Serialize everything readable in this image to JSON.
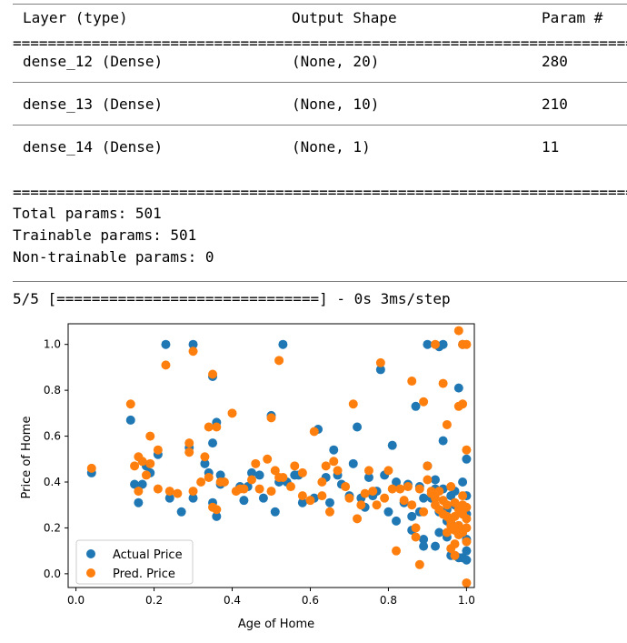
{
  "summary": {
    "headers": {
      "layer": "Layer (type)",
      "shape": "Output Shape",
      "params": "Param #"
    },
    "rows": [
      {
        "layer": "dense_12 (Dense)",
        "shape": "(None, 20)",
        "params": "280"
      },
      {
        "layer": "dense_13 (Dense)",
        "shape": "(None, 10)",
        "params": "210"
      },
      {
        "layer": "dense_14 (Dense)",
        "shape": "(None, 1)",
        "params": "11"
      }
    ],
    "total": "Total params: 501",
    "trainable": "Trainable params: 501",
    "non_trainable": "Non-trainable params: 0",
    "progress": "5/5 [==============================] - 0s 3ms/step"
  },
  "chart_data": {
    "type": "scatter",
    "xlabel": "Age of Home",
    "ylabel": "Price of Home",
    "xlim": [
      -0.02,
      1.02
    ],
    "ylim": [
      -0.06,
      1.09
    ],
    "xticks": [
      "0.0",
      "0.2",
      "0.4",
      "0.6",
      "0.8",
      "1.0"
    ],
    "yticks": [
      "0.0",
      "0.2",
      "0.4",
      "0.6",
      "0.8",
      "1.0"
    ],
    "legend_loc": "lower-left",
    "colors": {
      "actual": "#1f77b4",
      "pred": "#ff7f0e"
    },
    "series": [
      {
        "name": "Actual Price",
        "points": [
          [
            0.04,
            0.44
          ],
          [
            0.14,
            0.67
          ],
          [
            0.15,
            0.39
          ],
          [
            0.16,
            0.31
          ],
          [
            0.17,
            0.39
          ],
          [
            0.18,
            0.47
          ],
          [
            0.19,
            0.44
          ],
          [
            0.21,
            0.52
          ],
          [
            0.23,
            1.0
          ],
          [
            0.24,
            0.33
          ],
          [
            0.27,
            0.27
          ],
          [
            0.29,
            0.55
          ],
          [
            0.3,
            0.33
          ],
          [
            0.3,
            1.0
          ],
          [
            0.33,
            0.48
          ],
          [
            0.34,
            0.44
          ],
          [
            0.35,
            0.57
          ],
          [
            0.35,
            0.86
          ],
          [
            0.35,
            0.31
          ],
          [
            0.36,
            0.25
          ],
          [
            0.36,
            0.66
          ],
          [
            0.37,
            0.39
          ],
          [
            0.37,
            0.43
          ],
          [
            0.42,
            0.38
          ],
          [
            0.43,
            0.32
          ],
          [
            0.44,
            0.38
          ],
          [
            0.45,
            0.44
          ],
          [
            0.47,
            0.43
          ],
          [
            0.48,
            0.33
          ],
          [
            0.5,
            0.69
          ],
          [
            0.51,
            0.27
          ],
          [
            0.52,
            0.4
          ],
          [
            0.53,
            1.0
          ],
          [
            0.54,
            0.4
          ],
          [
            0.56,
            0.43
          ],
          [
            0.57,
            0.43
          ],
          [
            0.58,
            0.31
          ],
          [
            0.61,
            0.33
          ],
          [
            0.62,
            0.63
          ],
          [
            0.64,
            0.42
          ],
          [
            0.65,
            0.31
          ],
          [
            0.66,
            0.54
          ],
          [
            0.67,
            0.43
          ],
          [
            0.68,
            0.39
          ],
          [
            0.7,
            0.34
          ],
          [
            0.71,
            0.48
          ],
          [
            0.72,
            0.64
          ],
          [
            0.73,
            0.33
          ],
          [
            0.74,
            0.29
          ],
          [
            0.75,
            0.42
          ],
          [
            0.76,
            0.34
          ],
          [
            0.77,
            0.36
          ],
          [
            0.78,
            0.89
          ],
          [
            0.79,
            0.43
          ],
          [
            0.8,
            0.27
          ],
          [
            0.81,
            0.56
          ],
          [
            0.82,
            0.4
          ],
          [
            0.82,
            0.23
          ],
          [
            0.84,
            0.31
          ],
          [
            0.85,
            0.39
          ],
          [
            0.86,
            0.25
          ],
          [
            0.86,
            0.19
          ],
          [
            0.87,
            0.73
          ],
          [
            0.88,
            0.38
          ],
          [
            0.88,
            0.27
          ],
          [
            0.89,
            0.15
          ],
          [
            0.89,
            0.12
          ],
          [
            0.89,
            0.33
          ],
          [
            0.9,
            1.0
          ],
          [
            0.9,
            0.47
          ],
          [
            0.91,
            0.33
          ],
          [
            0.92,
            0.41
          ],
          [
            0.92,
            0.37
          ],
          [
            0.92,
            0.12
          ],
          [
            0.93,
            0.27
          ],
          [
            0.93,
            0.18
          ],
          [
            0.93,
            0.99
          ],
          [
            0.94,
            1.0
          ],
          [
            0.94,
            0.37
          ],
          [
            0.94,
            0.58
          ],
          [
            0.95,
            0.23
          ],
          [
            0.95,
            0.16
          ],
          [
            0.95,
            0.28
          ],
          [
            0.96,
            0.08
          ],
          [
            0.96,
            0.34
          ],
          [
            0.96,
            0.22
          ],
          [
            0.97,
            0.3
          ],
          [
            0.97,
            0.08
          ],
          [
            0.97,
            0.36
          ],
          [
            0.98,
            0.81
          ],
          [
            0.98,
            0.21
          ],
          [
            0.98,
            0.07
          ],
          [
            0.99,
            0.4
          ],
          [
            0.99,
            1.0
          ],
          [
            0.99,
            0.18
          ],
          [
            0.99,
            0.07
          ],
          [
            1.0,
            0.34
          ],
          [
            1.0,
            0.26
          ],
          [
            1.0,
            0.5
          ],
          [
            1.0,
            0.15
          ],
          [
            1.0,
            0.1
          ],
          [
            1.0,
            0.06
          ]
        ]
      },
      {
        "name": "Pred. Price",
        "points": [
          [
            0.04,
            0.46
          ],
          [
            0.14,
            0.74
          ],
          [
            0.15,
            0.47
          ],
          [
            0.16,
            0.36
          ],
          [
            0.16,
            0.51
          ],
          [
            0.17,
            0.49
          ],
          [
            0.18,
            0.43
          ],
          [
            0.19,
            0.6
          ],
          [
            0.19,
            0.48
          ],
          [
            0.21,
            0.54
          ],
          [
            0.21,
            0.37
          ],
          [
            0.23,
            0.91
          ],
          [
            0.24,
            0.36
          ],
          [
            0.26,
            0.35
          ],
          [
            0.29,
            0.57
          ],
          [
            0.29,
            0.53
          ],
          [
            0.3,
            0.36
          ],
          [
            0.3,
            0.97
          ],
          [
            0.32,
            0.4
          ],
          [
            0.33,
            0.51
          ],
          [
            0.34,
            0.64
          ],
          [
            0.34,
            0.42
          ],
          [
            0.35,
            0.87
          ],
          [
            0.35,
            0.29
          ],
          [
            0.36,
            0.64
          ],
          [
            0.36,
            0.28
          ],
          [
            0.37,
            0.4
          ],
          [
            0.38,
            0.4
          ],
          [
            0.4,
            0.7
          ],
          [
            0.41,
            0.36
          ],
          [
            0.42,
            0.37
          ],
          [
            0.43,
            0.37
          ],
          [
            0.45,
            0.41
          ],
          [
            0.46,
            0.48
          ],
          [
            0.47,
            0.37
          ],
          [
            0.49,
            0.5
          ],
          [
            0.5,
            0.68
          ],
          [
            0.5,
            0.36
          ],
          [
            0.51,
            0.45
          ],
          [
            0.52,
            0.93
          ],
          [
            0.52,
            0.42
          ],
          [
            0.53,
            0.42
          ],
          [
            0.55,
            0.38
          ],
          [
            0.56,
            0.47
          ],
          [
            0.58,
            0.44
          ],
          [
            0.58,
            0.34
          ],
          [
            0.6,
            0.32
          ],
          [
            0.61,
            0.62
          ],
          [
            0.63,
            0.4
          ],
          [
            0.63,
            0.34
          ],
          [
            0.64,
            0.47
          ],
          [
            0.65,
            0.27
          ],
          [
            0.66,
            0.49
          ],
          [
            0.67,
            0.45
          ],
          [
            0.69,
            0.38
          ],
          [
            0.7,
            0.33
          ],
          [
            0.71,
            0.74
          ],
          [
            0.72,
            0.24
          ],
          [
            0.73,
            0.3
          ],
          [
            0.74,
            0.35
          ],
          [
            0.75,
            0.45
          ],
          [
            0.76,
            0.36
          ],
          [
            0.77,
            0.3
          ],
          [
            0.78,
            0.92
          ],
          [
            0.79,
            0.33
          ],
          [
            0.8,
            0.45
          ],
          [
            0.81,
            0.37
          ],
          [
            0.82,
            0.1
          ],
          [
            0.83,
            0.37
          ],
          [
            0.84,
            0.32
          ],
          [
            0.85,
            0.38
          ],
          [
            0.86,
            0.84
          ],
          [
            0.86,
            0.3
          ],
          [
            0.87,
            0.2
          ],
          [
            0.87,
            0.16
          ],
          [
            0.88,
            0.37
          ],
          [
            0.88,
            0.04
          ],
          [
            0.89,
            0.75
          ],
          [
            0.89,
            0.27
          ],
          [
            0.9,
            0.41
          ],
          [
            0.9,
            0.47
          ],
          [
            0.91,
            0.35
          ],
          [
            0.91,
            0.36
          ],
          [
            0.92,
            1.0
          ],
          [
            0.92,
            0.33
          ],
          [
            0.92,
            0.3
          ],
          [
            0.93,
            0.28
          ],
          [
            0.93,
            0.36
          ],
          [
            0.94,
            0.83
          ],
          [
            0.94,
            0.32
          ],
          [
            0.94,
            0.26
          ],
          [
            0.95,
            0.65
          ],
          [
            0.95,
            0.3
          ],
          [
            0.95,
            0.18
          ],
          [
            0.95,
            0.25
          ],
          [
            0.96,
            0.23
          ],
          [
            0.96,
            0.11
          ],
          [
            0.96,
            0.38
          ],
          [
            0.96,
            0.21
          ],
          [
            0.97,
            0.25
          ],
          [
            0.97,
            0.19
          ],
          [
            0.97,
            0.31
          ],
          [
            0.97,
            0.13
          ],
          [
            0.97,
            0.08
          ],
          [
            0.98,
            1.06
          ],
          [
            0.98,
            0.73
          ],
          [
            0.98,
            0.28
          ],
          [
            0.98,
            0.17
          ],
          [
            0.98,
            0.21
          ],
          [
            0.99,
            0.74
          ],
          [
            0.99,
            1.0
          ],
          [
            0.99,
            0.26
          ],
          [
            0.99,
            0.34
          ],
          [
            0.99,
            0.3
          ],
          [
            0.99,
            0.18
          ],
          [
            1.0,
            0.2
          ],
          [
            1.0,
            1.0
          ],
          [
            1.0,
            0.54
          ],
          [
            1.0,
            0.29
          ],
          [
            1.0,
            0.24
          ],
          [
            1.0,
            0.14
          ],
          [
            1.0,
            -0.04
          ]
        ]
      }
    ]
  }
}
